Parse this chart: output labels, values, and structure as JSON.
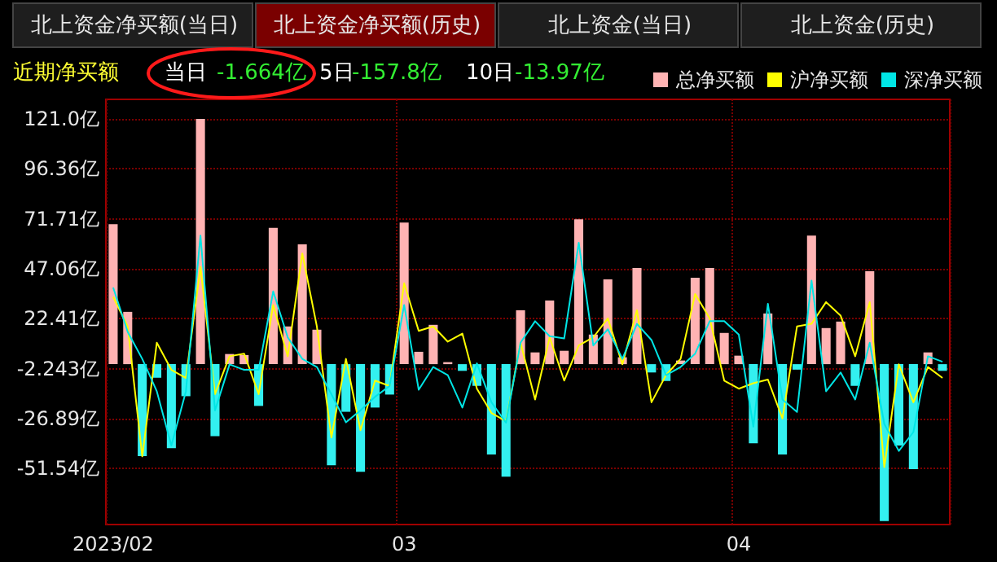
{
  "chart_data": {
    "type": "bar",
    "annotations": [
      "北上资金净买额(当日)",
      "北上资金净买额(历史)",
      "北上资金(当日)",
      "北上资金(历史)",
      "近期净买额",
      "当日",
      "-1.664亿",
      "5日",
      "-157.8亿",
      "10日",
      "-13.97亿"
    ],
    "categories": [
      "2023/02",
      null,
      null,
      null,
      null,
      null,
      null,
      null,
      null,
      null,
      null,
      null,
      null,
      null,
      null,
      null,
      null,
      null,
      null,
      null,
      "03",
      null,
      null,
      null,
      null,
      null,
      null,
      null,
      null,
      null,
      null,
      null,
      null,
      null,
      null,
      null,
      null,
      null,
      null,
      null,
      null,
      null,
      null,
      "04",
      null,
      null,
      null,
      null,
      null,
      null,
      null,
      null,
      null,
      null,
      null,
      null,
      null,
      null
    ],
    "series": [
      {
        "name": "总净买额",
        "color": "#ffb3b3",
        "values": [
          69.0,
          25.8,
          -45.4,
          -6.7,
          -41.4,
          -15.8,
          121.0,
          -35.5,
          5.0,
          4.5,
          -20.6,
          67.2,
          18.6,
          59.1,
          17.0,
          -49.9,
          -23.5,
          -53.1,
          -21.4,
          -15.0,
          69.8,
          6.1,
          19.4,
          1.0,
          -3.3,
          -10.7,
          -44.6,
          -55.5,
          26.6,
          5.8,
          31.4,
          6.6,
          71.4,
          14.6,
          41.8,
          3.4,
          47.4,
          -4.1,
          -8.3,
          1.8,
          42.6,
          47.4,
          15.4,
          4.2,
          -39.0,
          25.0,
          -44.6,
          -2.7,
          63.4,
          17.8,
          21.0,
          -10.7,
          45.8,
          -77.4,
          -40.1,
          -51.8,
          5.8,
          -3.3
        ],
        "colors": [
          "#ffb3b3",
          "#ffb3b3",
          "#33f0f0",
          "#33f0f0",
          "#33f0f0",
          "#33f0f0",
          "#ffb3b3",
          "#33f0f0",
          "#ffb3b3",
          "#ffb3b3",
          "#33f0f0",
          "#ffb3b3",
          "#ffb3b3",
          "#ffb3b3",
          "#ffb3b3",
          "#33f0f0",
          "#33f0f0",
          "#33f0f0",
          "#33f0f0",
          "#33f0f0",
          "#ffb3b3",
          "#ffb3b3",
          "#ffb3b3",
          "#ffb3b3",
          "#33f0f0",
          "#33f0f0",
          "#33f0f0",
          "#33f0f0",
          "#ffb3b3",
          "#ffb3b3",
          "#ffb3b3",
          "#ffb3b3",
          "#ffb3b3",
          "#ffb3b3",
          "#ffb3b3",
          "#ffb3b3",
          "#ffb3b3",
          "#33f0f0",
          "#33f0f0",
          "#ffb3b3",
          "#ffb3b3",
          "#ffb3b3",
          "#ffb3b3",
          "#ffb3b3",
          "#33f0f0",
          "#ffb3b3",
          "#33f0f0",
          "#33f0f0",
          "#ffb3b3",
          "#ffb3b3",
          "#ffb3b3",
          "#33f0f0",
          "#ffb3b3",
          "#33f0f0",
          "#33f0f0",
          "#33f0f0",
          "#ffb3b3",
          "#33f0f0"
        ]
      },
      {
        "name": "沪净买额",
        "type": "line",
        "color": "#ffff00",
        "values": [
          33.2,
          18.6,
          -45.5,
          10.6,
          -2.8,
          -6.8,
          47.9,
          -14.8,
          3.9,
          5.2,
          -14.8,
          29.2,
          3.9,
          54.6,
          18.6,
          -36.1,
          2.6,
          -32.6,
          -8.1,
          -10.8,
          39.9,
          16.4,
          18.6,
          11.1,
          15.1,
          -12.1,
          -24.1,
          -28.1,
          10.6,
          -17.4,
          13.2,
          -8.1,
          9.2,
          13.2,
          22.6,
          -0.1,
          26.6,
          -18.8,
          -5.4,
          2.6,
          34.6,
          22.6,
          -8.1,
          -12.1,
          -9.4,
          -7.6,
          -26.8,
          18.6,
          19.9,
          30.6,
          23.9,
          3.9,
          30.6,
          -50.8,
          -0.1,
          -18.8,
          -1.4,
          -6.8
        ]
      },
      {
        "name": "深净买额",
        "type": "line",
        "color": "#00e5e5",
        "values": [
          37.8,
          15.9,
          2.6,
          -13.4,
          -40.1,
          -13.4,
          63.4,
          -22.8,
          -0.1,
          -2.8,
          -2.8,
          35.9,
          13.2,
          2.6,
          -1.4,
          -14.8,
          -28.7,
          -22.8,
          -16.1,
          -10.8,
          29.2,
          -12.6,
          -1.4,
          -5.4,
          -21.4,
          0.4,
          -18.8,
          -28.9,
          10.6,
          21.2,
          13.8,
          12.7,
          59.9,
          9.2,
          17.2,
          2.6,
          19.9,
          11.9,
          -5.4,
          -1.4,
          5.2,
          21.2,
          21.2,
          14.6,
          -30.8,
          29.8,
          -17.4,
          -23.6,
          41.2,
          -13.4,
          -4.1,
          -17.4,
          10.6,
          -29.5,
          -42.8,
          -33.5,
          3.9,
          1.2
        ]
      }
    ],
    "ylim": [
      -79.1,
      130.6
    ],
    "yticks": [
      {
        "value": 121.0,
        "label": "121.0亿"
      },
      {
        "value": 96.36,
        "label": "96.36亿"
      },
      {
        "value": 71.71,
        "label": "71.71亿"
      },
      {
        "value": 47.06,
        "label": "47.06亿"
      },
      {
        "value": 22.41,
        "label": "22.41亿"
      },
      {
        "value": -2.243,
        "label": "-2.243亿"
      },
      {
        "value": -26.89,
        "label": "-26.89亿"
      },
      {
        "value": -51.54,
        "label": "-51.54亿"
      }
    ],
    "grid": true,
    "legend": "top right",
    "marker": "none"
  }
}
